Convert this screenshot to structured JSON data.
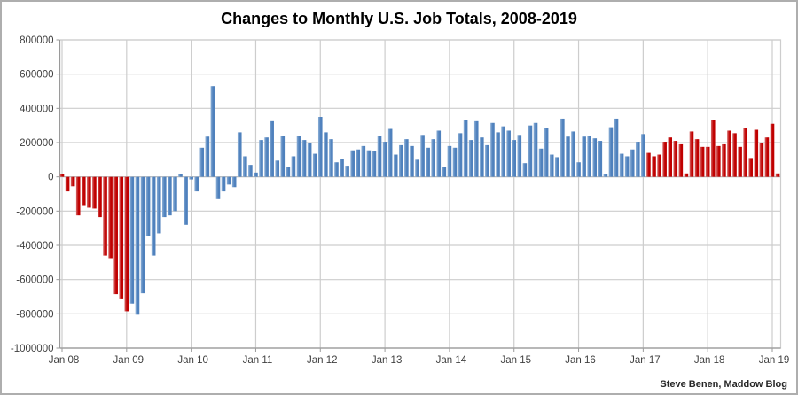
{
  "window": {
    "background": "#ffffff",
    "border_color": "#aeaeae"
  },
  "chart_data": {
    "type": "bar",
    "title": "Changes to Monthly U.S. Job Totals, 2008-2019",
    "attribution": "Steve Benen, Maddow Blog",
    "xlabel": "",
    "ylabel": "",
    "ylim": [
      -1000000,
      800000
    ],
    "y_step": 200000,
    "y_tick_labels": [
      "800000",
      "600000",
      "400000",
      "200000",
      "0",
      "-200000",
      "-400000",
      "-600000",
      "-800000",
      "-1000000"
    ],
    "x_tick_labels": [
      "Jan 08",
      "Jan 09",
      "Jan 10",
      "Jan 11",
      "Jan 12",
      "Jan 13",
      "Jan 14",
      "Jan 15",
      "Jan 16",
      "Jan 17",
      "Jan 18",
      "Jan 19"
    ],
    "grid": true,
    "legend_position": "none",
    "categories": [
      "Jan 08",
      "Feb 08",
      "Mar 08",
      "Apr 08",
      "May 08",
      "Jun 08",
      "Jul 08",
      "Aug 08",
      "Sep 08",
      "Oct 08",
      "Nov 08",
      "Dec 08",
      "Jan 09",
      "Feb 09",
      "Mar 09",
      "Apr 09",
      "May 09",
      "Jun 09",
      "Jul 09",
      "Aug 09",
      "Sep 09",
      "Oct 09",
      "Nov 09",
      "Dec 09",
      "Jan 10",
      "Feb 10",
      "Mar 10",
      "Apr 10",
      "May 10",
      "Jun 10",
      "Jul 10",
      "Aug 10",
      "Sep 10",
      "Oct 10",
      "Nov 10",
      "Dec 10",
      "Jan 11",
      "Feb 11",
      "Mar 11",
      "Apr 11",
      "May 11",
      "Jun 11",
      "Jul 11",
      "Aug 11",
      "Sep 11",
      "Oct 11",
      "Nov 11",
      "Dec 11",
      "Jan 12",
      "Feb 12",
      "Mar 12",
      "Apr 12",
      "May 12",
      "Jun 12",
      "Jul 12",
      "Aug 12",
      "Sep 12",
      "Oct 12",
      "Nov 12",
      "Dec 12",
      "Jan 13",
      "Feb 13",
      "Mar 13",
      "Apr 13",
      "May 13",
      "Jun 13",
      "Jul 13",
      "Aug 13",
      "Sep 13",
      "Oct 13",
      "Nov 13",
      "Dec 13",
      "Jan 14",
      "Feb 14",
      "Mar 14",
      "Apr 14",
      "May 14",
      "Jun 14",
      "Jul 14",
      "Aug 14",
      "Sep 14",
      "Oct 14",
      "Nov 14",
      "Dec 14",
      "Jan 15",
      "Feb 15",
      "Mar 15",
      "Apr 15",
      "May 15",
      "Jun 15",
      "Jul 15",
      "Aug 15",
      "Sep 15",
      "Oct 15",
      "Nov 15",
      "Dec 15",
      "Jan 16",
      "Feb 16",
      "Mar 16",
      "Apr 16",
      "May 16",
      "Jun 16",
      "Jul 16",
      "Aug 16",
      "Sep 16",
      "Oct 16",
      "Nov 16",
      "Dec 16",
      "Jan 17",
      "Feb 17",
      "Mar 17",
      "Apr 17",
      "May 17",
      "Jun 17",
      "Jul 17",
      "Aug 17",
      "Sep 17",
      "Oct 17",
      "Nov 17",
      "Dec 17",
      "Jan 18",
      "Feb 18",
      "Mar 18",
      "Apr 18",
      "May 18",
      "Jun 18",
      "Jul 18",
      "Aug 18",
      "Sep 18",
      "Oct 18",
      "Nov 18",
      "Dec 18",
      "Jan 19",
      "Feb 19"
    ],
    "values": [
      15000,
      -85000,
      -55000,
      -225000,
      -170000,
      -180000,
      -185000,
      -235000,
      -460000,
      -475000,
      -685000,
      -715000,
      -785000,
      -740000,
      -805000,
      -680000,
      -345000,
      -460000,
      -330000,
      -235000,
      -225000,
      -200000,
      15000,
      -280000,
      -15000,
      -85000,
      170000,
      235000,
      530000,
      -130000,
      -85000,
      -45000,
      -60000,
      260000,
      120000,
      70000,
      25000,
      215000,
      230000,
      325000,
      95000,
      240000,
      60000,
      120000,
      240000,
      215000,
      200000,
      135000,
      350000,
      260000,
      220000,
      85000,
      105000,
      65000,
      155000,
      160000,
      180000,
      155000,
      150000,
      240000,
      205000,
      280000,
      130000,
      185000,
      220000,
      180000,
      100000,
      245000,
      170000,
      220000,
      270000,
      60000,
      180000,
      170000,
      255000,
      330000,
      215000,
      325000,
      230000,
      185000,
      315000,
      260000,
      295000,
      270000,
      215000,
      245000,
      80000,
      300000,
      315000,
      165000,
      285000,
      130000,
      115000,
      340000,
      235000,
      265000,
      85000,
      235000,
      240000,
      225000,
      210000,
      15000,
      290000,
      340000,
      135000,
      120000,
      160000,
      205000,
      250000,
      140000,
      120000,
      130000,
      205000,
      230000,
      210000,
      190000,
      20000,
      265000,
      220000,
      175000,
      175000,
      330000,
      180000,
      190000,
      270000,
      255000,
      175000,
      285000,
      110000,
      275000,
      200000,
      230000,
      310000,
      20000
    ],
    "color_segments": [
      {
        "start_index": 0,
        "end_index": 12,
        "color": "#c00000",
        "label": "red"
      },
      {
        "start_index": 13,
        "end_index": 108,
        "color": "#4f81bd",
        "label": "blue"
      },
      {
        "start_index": 109,
        "end_index": 133,
        "color": "#c00000",
        "label": "red"
      }
    ],
    "colors": {
      "bar_red": "#c00000",
      "bar_red_light": "#d56a6a",
      "bar_blue": "#4f81bd",
      "bar_blue_light": "#8cafd6",
      "gridline": "#cdcdcd",
      "zero_line": "#b5b5b5",
      "axis_line": "#9a9a9a",
      "tick_label": "#3f3f3f"
    }
  }
}
